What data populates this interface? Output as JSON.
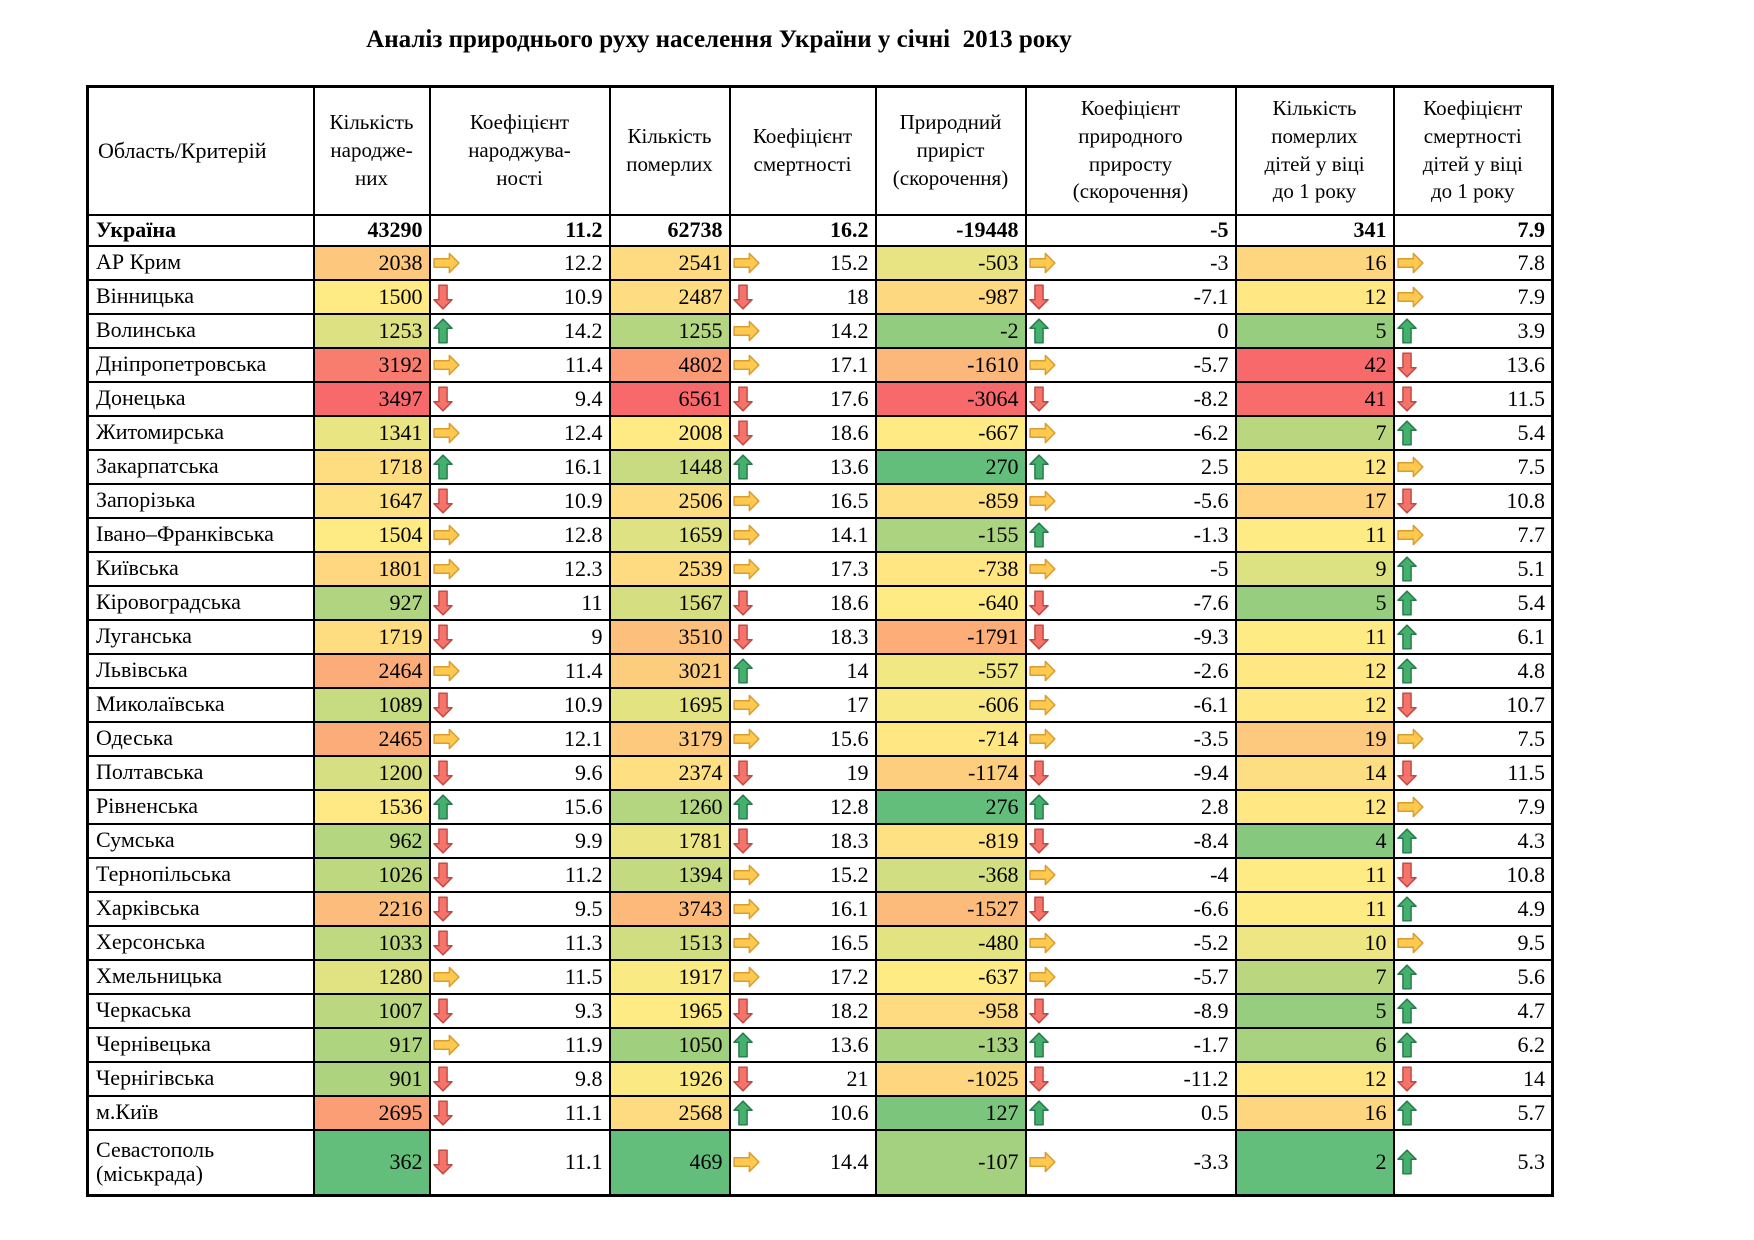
{
  "title": "Аналіз природнього руху населення України у січні  2013 року",
  "heatmap": {
    "palette": {
      "red": "#F8696B",
      "yellow": "#FFEB84",
      "green": "#63BE7B"
    },
    "column_scales": {
      "births": "green-yellow-red",
      "deaths": "green-yellow-red",
      "natural": "red-yellow-green",
      "infant_deaths": "green-yellow-red"
    }
  },
  "arrows": {
    "up": {
      "icon": "trend-up-icon",
      "fill": "#45B06E",
      "stroke": "#277A4B"
    },
    "down": {
      "icon": "trend-down-icon",
      "fill": "#F4746C",
      "stroke": "#C04A42"
    },
    "right": {
      "icon": "trend-right-icon",
      "fill": "#FFC94F",
      "stroke": "#D99E33"
    }
  },
  "table": {
    "columns": [
      {
        "key": "region",
        "label": "Область/Критерій"
      },
      {
        "key": "births",
        "label": "Кількість\nнародже-\nних"
      },
      {
        "key": "birth-rate",
        "label": "Коефіцієнт\nнароджува-\nності"
      },
      {
        "key": "deaths",
        "label": "Кількість\nпомерлих"
      },
      {
        "key": "death-rate",
        "label": "Коефіцієнт\nсмертності"
      },
      {
        "key": "natural",
        "label": "Природний\nприріст\n(скорочення)"
      },
      {
        "key": "natural-rate",
        "label": "Коефіцієнт\nприродного\nприросту\n(скорочення)"
      },
      {
        "key": "infant-deaths",
        "label": "Кількість\nпомерлих\nдітей у віці\nдо 1 року"
      },
      {
        "key": "infant-rate",
        "label": "Коефіцієнт\nсмертності\nдітей у віці\nдо 1 року"
      }
    ],
    "total": {
      "name": "Україна",
      "births": 43290,
      "birth_rate": 11.2,
      "deaths": 62738,
      "death_rate": 16.2,
      "natural": -19448,
      "natural_rate": -5,
      "infant_deaths": 341,
      "infant_rate": 7.9
    },
    "rows": [
      {
        "name": "АР Крим",
        "births": 2038,
        "birth_arrow": "right",
        "birth_rate": 12.2,
        "deaths": 2541,
        "death_arrow": "right",
        "death_rate": 15.2,
        "natural": -503,
        "natural_arrow": "right",
        "natural_rate": -3,
        "infant_deaths": 16,
        "infant_arrow": "right",
        "infant_rate": 7.8
      },
      {
        "name": "Вінницька",
        "births": 1500,
        "birth_arrow": "down",
        "birth_rate": 10.9,
        "deaths": 2487,
        "death_arrow": "down",
        "death_rate": 18,
        "natural": -987,
        "natural_arrow": "down",
        "natural_rate": -7.1,
        "infant_deaths": 12,
        "infant_arrow": "right",
        "infant_rate": 7.9
      },
      {
        "name": "Волинська",
        "births": 1253,
        "birth_arrow": "up",
        "birth_rate": 14.2,
        "deaths": 1255,
        "death_arrow": "right",
        "death_rate": 14.2,
        "natural": -2,
        "natural_arrow": "up",
        "natural_rate": 0,
        "infant_deaths": 5,
        "infant_arrow": "up",
        "infant_rate": 3.9
      },
      {
        "name": "Дніпропетровська",
        "births": 3192,
        "birth_arrow": "right",
        "birth_rate": 11.4,
        "deaths": 4802,
        "death_arrow": "right",
        "death_rate": 17.1,
        "natural": -1610,
        "natural_arrow": "right",
        "natural_rate": -5.7,
        "infant_deaths": 42,
        "infant_arrow": "down",
        "infant_rate": 13.6
      },
      {
        "name": "Донецька",
        "births": 3497,
        "birth_arrow": "down",
        "birth_rate": 9.4,
        "deaths": 6561,
        "death_arrow": "down",
        "death_rate": 17.6,
        "natural": -3064,
        "natural_arrow": "down",
        "natural_rate": -8.2,
        "infant_deaths": 41,
        "infant_arrow": "down",
        "infant_rate": 11.5
      },
      {
        "name": "Житомирська",
        "births": 1341,
        "birth_arrow": "right",
        "birth_rate": 12.4,
        "deaths": 2008,
        "death_arrow": "down",
        "death_rate": 18.6,
        "natural": -667,
        "natural_arrow": "right",
        "natural_rate": -6.2,
        "infant_deaths": 7,
        "infant_arrow": "up",
        "infant_rate": 5.4
      },
      {
        "name": "Закарпатська",
        "births": 1718,
        "birth_arrow": "up",
        "birth_rate": 16.1,
        "deaths": 1448,
        "death_arrow": "up",
        "death_rate": 13.6,
        "natural": 270,
        "natural_arrow": "up",
        "natural_rate": 2.5,
        "infant_deaths": 12,
        "infant_arrow": "right",
        "infant_rate": 7.5
      },
      {
        "name": "Запорізька",
        "births": 1647,
        "birth_arrow": "down",
        "birth_rate": 10.9,
        "deaths": 2506,
        "death_arrow": "right",
        "death_rate": 16.5,
        "natural": -859,
        "natural_arrow": "right",
        "natural_rate": -5.6,
        "infant_deaths": 17,
        "infant_arrow": "down",
        "infant_rate": 10.8
      },
      {
        "name": "Івано–Франківська",
        "births": 1504,
        "birth_arrow": "right",
        "birth_rate": 12.8,
        "deaths": 1659,
        "death_arrow": "right",
        "death_rate": 14.1,
        "natural": -155,
        "natural_arrow": "up",
        "natural_rate": -1.3,
        "infant_deaths": 11,
        "infant_arrow": "right",
        "infant_rate": 7.7
      },
      {
        "name": "Київська",
        "births": 1801,
        "birth_arrow": "right",
        "birth_rate": 12.3,
        "deaths": 2539,
        "death_arrow": "right",
        "death_rate": 17.3,
        "natural": -738,
        "natural_arrow": "right",
        "natural_rate": -5,
        "infant_deaths": 9,
        "infant_arrow": "up",
        "infant_rate": 5.1
      },
      {
        "name": "Кіровоградська",
        "births": 927,
        "birth_arrow": "down",
        "birth_rate": 11,
        "deaths": 1567,
        "death_arrow": "down",
        "death_rate": 18.6,
        "natural": -640,
        "natural_arrow": "down",
        "natural_rate": -7.6,
        "infant_deaths": 5,
        "infant_arrow": "up",
        "infant_rate": 5.4
      },
      {
        "name": "Луганська",
        "births": 1719,
        "birth_arrow": "down",
        "birth_rate": 9,
        "deaths": 3510,
        "death_arrow": "down",
        "death_rate": 18.3,
        "natural": -1791,
        "natural_arrow": "down",
        "natural_rate": -9.3,
        "infant_deaths": 11,
        "infant_arrow": "up",
        "infant_rate": 6.1
      },
      {
        "name": "Львівська",
        "births": 2464,
        "birth_arrow": "right",
        "birth_rate": 11.4,
        "deaths": 3021,
        "death_arrow": "up",
        "death_rate": 14,
        "natural": -557,
        "natural_arrow": "right",
        "natural_rate": -2.6,
        "infant_deaths": 12,
        "infant_arrow": "up",
        "infant_rate": 4.8
      },
      {
        "name": "Миколаївська",
        "births": 1089,
        "birth_arrow": "down",
        "birth_rate": 10.9,
        "deaths": 1695,
        "death_arrow": "right",
        "death_rate": 17,
        "natural": -606,
        "natural_arrow": "right",
        "natural_rate": -6.1,
        "infant_deaths": 12,
        "infant_arrow": "down",
        "infant_rate": 10.7
      },
      {
        "name": "Одеська",
        "births": 2465,
        "birth_arrow": "right",
        "birth_rate": 12.1,
        "deaths": 3179,
        "death_arrow": "right",
        "death_rate": 15.6,
        "natural": -714,
        "natural_arrow": "right",
        "natural_rate": -3.5,
        "infant_deaths": 19,
        "infant_arrow": "right",
        "infant_rate": 7.5
      },
      {
        "name": "Полтавська",
        "births": 1200,
        "birth_arrow": "down",
        "birth_rate": 9.6,
        "deaths": 2374,
        "death_arrow": "down",
        "death_rate": 19,
        "natural": -1174,
        "natural_arrow": "down",
        "natural_rate": -9.4,
        "infant_deaths": 14,
        "infant_arrow": "down",
        "infant_rate": 11.5
      },
      {
        "name": "Рівненська",
        "births": 1536,
        "birth_arrow": "up",
        "birth_rate": 15.6,
        "deaths": 1260,
        "death_arrow": "up",
        "death_rate": 12.8,
        "natural": 276,
        "natural_arrow": "up",
        "natural_rate": 2.8,
        "infant_deaths": 12,
        "infant_arrow": "right",
        "infant_rate": 7.9
      },
      {
        "name": "Сумська",
        "births": 962,
        "birth_arrow": "down",
        "birth_rate": 9.9,
        "deaths": 1781,
        "death_arrow": "down",
        "death_rate": 18.3,
        "natural": -819,
        "natural_arrow": "down",
        "natural_rate": -8.4,
        "infant_deaths": 4,
        "infant_arrow": "up",
        "infant_rate": 4.3
      },
      {
        "name": "Тернопільська",
        "births": 1026,
        "birth_arrow": "down",
        "birth_rate": 11.2,
        "deaths": 1394,
        "death_arrow": "right",
        "death_rate": 15.2,
        "natural": -368,
        "natural_arrow": "right",
        "natural_rate": -4,
        "infant_deaths": 11,
        "infant_arrow": "down",
        "infant_rate": 10.8
      },
      {
        "name": "Харківська",
        "births": 2216,
        "birth_arrow": "down",
        "birth_rate": 9.5,
        "deaths": 3743,
        "death_arrow": "right",
        "death_rate": 16.1,
        "natural": -1527,
        "natural_arrow": "down",
        "natural_rate": -6.6,
        "infant_deaths": 11,
        "infant_arrow": "up",
        "infant_rate": 4.9
      },
      {
        "name": "Херсонська",
        "births": 1033,
        "birth_arrow": "down",
        "birth_rate": 11.3,
        "deaths": 1513,
        "death_arrow": "right",
        "death_rate": 16.5,
        "natural": -480,
        "natural_arrow": "right",
        "natural_rate": -5.2,
        "infant_deaths": 10,
        "infant_arrow": "right",
        "infant_rate": 9.5
      },
      {
        "name": "Хмельницька",
        "births": 1280,
        "birth_arrow": "right",
        "birth_rate": 11.5,
        "deaths": 1917,
        "death_arrow": "right",
        "death_rate": 17.2,
        "natural": -637,
        "natural_arrow": "right",
        "natural_rate": -5.7,
        "infant_deaths": 7,
        "infant_arrow": "up",
        "infant_rate": 5.6
      },
      {
        "name": "Черкаська",
        "births": 1007,
        "birth_arrow": "down",
        "birth_rate": 9.3,
        "deaths": 1965,
        "death_arrow": "down",
        "death_rate": 18.2,
        "natural": -958,
        "natural_arrow": "down",
        "natural_rate": -8.9,
        "infant_deaths": 5,
        "infant_arrow": "up",
        "infant_rate": 4.7
      },
      {
        "name": "Чернівецька",
        "births": 917,
        "birth_arrow": "right",
        "birth_rate": 11.9,
        "deaths": 1050,
        "death_arrow": "up",
        "death_rate": 13.6,
        "natural": -133,
        "natural_arrow": "up",
        "natural_rate": -1.7,
        "infant_deaths": 6,
        "infant_arrow": "up",
        "infant_rate": 6.2
      },
      {
        "name": "Чернігівська",
        "births": 901,
        "birth_arrow": "down",
        "birth_rate": 9.8,
        "deaths": 1926,
        "death_arrow": "down",
        "death_rate": 21,
        "natural": -1025,
        "natural_arrow": "down",
        "natural_rate": -11.2,
        "infant_deaths": 12,
        "infant_arrow": "down",
        "infant_rate": 14
      },
      {
        "name": "м.Київ",
        "births": 2695,
        "birth_arrow": "down",
        "birth_rate": 11.1,
        "deaths": 2568,
        "death_arrow": "up",
        "death_rate": 10.6,
        "natural": 127,
        "natural_arrow": "up",
        "natural_rate": 0.5,
        "infant_deaths": 16,
        "infant_arrow": "up",
        "infant_rate": 5.7
      },
      {
        "name": "Севастополь\n(міськрада)",
        "births": 362,
        "birth_arrow": "down",
        "birth_rate": 11.1,
        "deaths": 469,
        "death_arrow": "right",
        "death_rate": 14.4,
        "natural": -107,
        "natural_arrow": "right",
        "natural_rate": -3.3,
        "infant_deaths": 2,
        "infant_arrow": "up",
        "infant_rate": 5.3
      }
    ]
  }
}
